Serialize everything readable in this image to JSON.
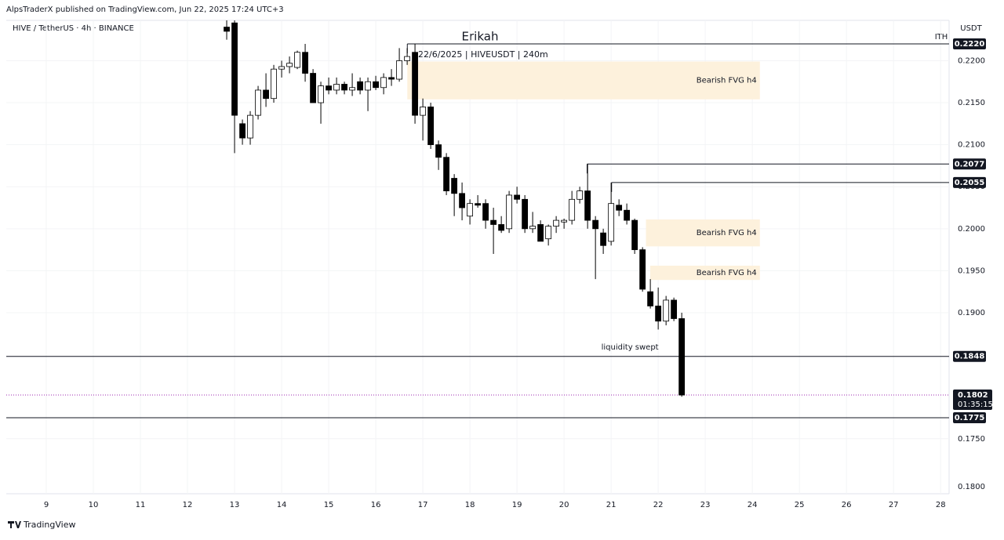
{
  "header": {
    "publisher": "AlpsTraderX published on TradingView.com, Jun 22, 2025 17:24 UTC+3",
    "footer": "TradingView"
  },
  "chart_data": {
    "type": "candlestick",
    "symbol": "HIVE / TetherUS · 4h · BINANCE",
    "title": "Erikah",
    "subtitle": "22/6/2025 | HIVEUSDT | 240m",
    "currency": "USDT",
    "corner_note": "ITH",
    "up_color": "#ffffff",
    "down_color": "#000000",
    "wick_color": "#000000",
    "xlim": [
      8.15,
      28.18
    ],
    "xticks": [
      9,
      10,
      11,
      12,
      13,
      14,
      15,
      16,
      17,
      18,
      19,
      20,
      21,
      22,
      23,
      24,
      25,
      26,
      27,
      28
    ],
    "ylim": [
      0.16845,
      0.2248
    ],
    "yticks": [
      {
        "value": 0.175,
        "label": "0.1750"
      },
      {
        "value": 0.19,
        "label": "0.1900"
      },
      {
        "value": 0.195,
        "label": "0.1950"
      },
      {
        "value": 0.2,
        "label": "0.2000"
      },
      {
        "value": 0.205,
        "label": "0.2050"
      },
      {
        "value": 0.21,
        "label": "0.2100"
      },
      {
        "value": 0.215,
        "label": "0.2150"
      },
      {
        "value": 0.22,
        "label": "0.2200"
      }
    ],
    "grid": true,
    "extra_axis_label": "0.1800",
    "x": [
      12.833,
      13.0,
      13.167,
      13.333,
      13.5,
      13.667,
      13.833,
      14.0,
      14.167,
      14.333,
      14.5,
      14.667,
      14.833,
      15.0,
      15.167,
      15.333,
      15.5,
      15.667,
      15.833,
      16.0,
      16.167,
      16.333,
      16.5,
      16.667,
      16.833,
      17.0,
      17.167,
      17.333,
      17.5,
      17.667,
      17.833,
      18.0,
      18.167,
      18.333,
      18.5,
      18.667,
      18.833,
      19.0,
      19.167,
      19.333,
      19.5,
      19.667,
      19.833,
      20.0,
      20.167,
      20.333,
      20.5,
      20.667,
      20.833,
      21.0,
      21.167,
      21.333,
      21.5,
      21.667,
      21.833,
      22.0,
      22.167,
      22.333,
      22.5
    ],
    "open": [
      0.224,
      0.2245,
      0.2125,
      0.2108,
      0.2135,
      0.2165,
      0.2155,
      0.219,
      0.2193,
      0.2192,
      0.221,
      0.2185,
      0.215,
      0.217,
      0.2165,
      0.2172,
      0.2165,
      0.2175,
      0.2165,
      0.2175,
      0.2168,
      0.218,
      0.2178,
      0.22,
      0.221,
      0.2135,
      0.2145,
      0.21,
      0.2085,
      0.206,
      0.2042,
      0.2015,
      0.203,
      0.203,
      0.201,
      0.2005,
      0.2,
      0.204,
      0.2035,
      0.2,
      0.2005,
      0.1988,
      0.2003,
      0.2008,
      0.201,
      0.2035,
      0.2045,
      0.201,
      0.1995,
      0.1985,
      0.2028,
      0.2022,
      0.201,
      0.1975,
      0.1925,
      0.1908,
      0.189,
      0.1915,
      0.1893
    ],
    "high": [
      0.2248,
      0.2248,
      0.213,
      0.214,
      0.217,
      0.2185,
      0.2195,
      0.22,
      0.2205,
      0.2212,
      0.222,
      0.219,
      0.2175,
      0.218,
      0.218,
      0.2175,
      0.2185,
      0.218,
      0.218,
      0.2182,
      0.2185,
      0.219,
      0.2215,
      0.2215,
      0.222,
      0.2155,
      0.215,
      0.2105,
      0.209,
      0.2065,
      0.2055,
      0.2035,
      0.204,
      0.2035,
      0.2025,
      0.2015,
      0.2045,
      0.205,
      0.204,
      0.202,
      0.201,
      0.2005,
      0.2015,
      0.2012,
      0.2045,
      0.205,
      0.2077,
      0.2015,
      0.2,
      0.2055,
      0.2035,
      0.203,
      0.2012,
      0.1978,
      0.194,
      0.193,
      0.192,
      0.1918,
      0.19
    ],
    "low": [
      0.2225,
      0.209,
      0.21,
      0.21,
      0.213,
      0.2145,
      0.215,
      0.218,
      0.2185,
      0.219,
      0.2175,
      0.215,
      0.2125,
      0.216,
      0.216,
      0.216,
      0.2158,
      0.216,
      0.214,
      0.2165,
      0.216,
      0.217,
      0.2175,
      0.2195,
      0.2125,
      0.2105,
      0.2095,
      0.207,
      0.204,
      0.2015,
      0.201,
      0.2005,
      0.2025,
      0.2,
      0.197,
      0.1995,
      0.1995,
      0.203,
      0.1995,
      0.1995,
      0.1985,
      0.198,
      0.1995,
      0.2,
      0.2005,
      0.203,
      0.2,
      0.194,
      0.197,
      0.198,
      0.2015,
      0.2005,
      0.197,
      0.1925,
      0.1905,
      0.188,
      0.1885,
      0.189,
      0.18
    ],
    "close": [
      0.2235,
      0.2135,
      0.2108,
      0.2135,
      0.2165,
      0.2155,
      0.219,
      0.2193,
      0.2197,
      0.221,
      0.2185,
      0.215,
      0.217,
      0.2165,
      0.2172,
      0.2165,
      0.2168,
      0.2165,
      0.2175,
      0.2168,
      0.218,
      0.2178,
      0.22,
      0.2205,
      0.2135,
      0.2145,
      0.21,
      0.2085,
      0.2045,
      0.2042,
      0.2025,
      0.203,
      0.2028,
      0.201,
      0.2005,
      0.1998,
      0.204,
      0.2035,
      0.2,
      0.2003,
      0.1985,
      0.2003,
      0.201,
      0.201,
      0.2035,
      0.2045,
      0.201,
      0.2,
      0.198,
      0.203,
      0.2022,
      0.201,
      0.1975,
      0.1928,
      0.1908,
      0.189,
      0.1915,
      0.1893,
      0.1802
    ],
    "levels": [
      {
        "value": 0.222,
        "label": "0.2220",
        "start": 16.67
      },
      {
        "value": 0.2077,
        "label": "0.2077",
        "start": 20.49
      },
      {
        "value": 0.2055,
        "label": "0.2055",
        "start": 21.01
      },
      {
        "value": 0.1848,
        "label": "0.1848",
        "start": 8.15
      },
      {
        "value": 0.1775,
        "label": "0.1775",
        "start": 8.15
      }
    ],
    "current_price": {
      "value": 0.1802,
      "label": "0.1802",
      "countdown": "01:35:15",
      "color": "#9c27b0"
    },
    "zones": [
      {
        "label": "Bearish FVG h4",
        "x": [
          16.67,
          24.16
        ],
        "y": [
          0.2154,
          0.2199
        ],
        "color": "#fdf1dc"
      },
      {
        "label": "Bearish FVG h4",
        "x": [
          21.74,
          24.16
        ],
        "y": [
          0.1979,
          0.2011
        ],
        "color": "#fdf1dc"
      },
      {
        "label": "Bearish FVG h4",
        "x": [
          21.83,
          24.16
        ],
        "y": [
          0.1939,
          0.1956
        ],
        "color": "#fdf1dc"
      }
    ],
    "annotations": [
      {
        "text": "liquidity swept",
        "x": 21.4,
        "y": 0.1855
      }
    ]
  }
}
